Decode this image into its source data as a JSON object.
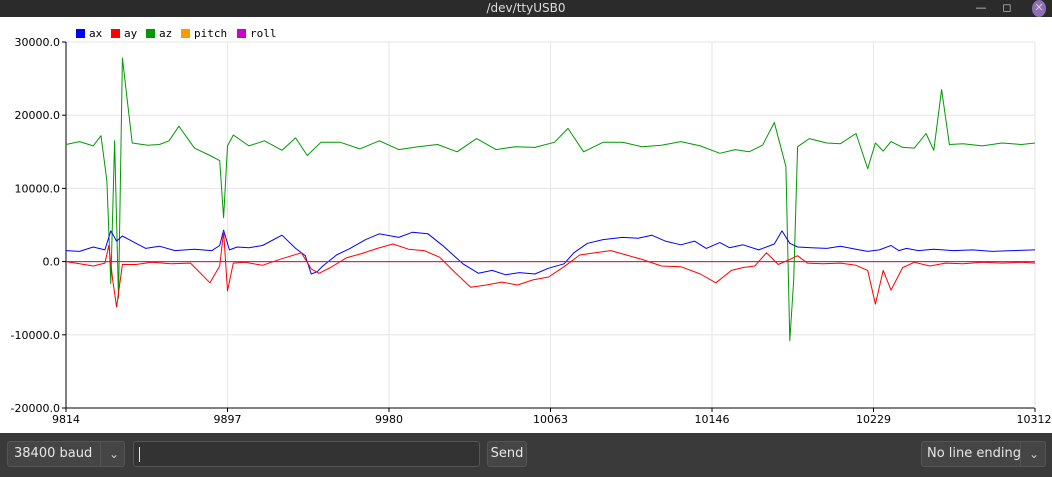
{
  "window": {
    "title": "/dev/ttyUSB0"
  },
  "legend": [
    {
      "label": "ax",
      "color": "#0000ff"
    },
    {
      "label": "ay",
      "color": "#ff0000"
    },
    {
      "label": "az",
      "color": "#009900"
    },
    {
      "label": "pitch",
      "color": "#ff9900"
    },
    {
      "label": "roll",
      "color": "#cc00cc"
    }
  ],
  "controls": {
    "baud_label": "38400 baud",
    "message_value": "",
    "send_label": "Send",
    "line_ending_label": "No line ending"
  },
  "chart_data": {
    "type": "line",
    "ylim": [
      -20000,
      30000
    ],
    "xlim": [
      9814,
      10312
    ],
    "y_ticks": [
      "30000.0",
      "20000.0",
      "10000.0",
      "0.0",
      "-10000.0",
      "-20000.0"
    ],
    "x_ticks": [
      "9814",
      "9897",
      "9980",
      "10063",
      "10146",
      "10229",
      "10312"
    ],
    "legend_position": "top-left",
    "grid": true,
    "series": [
      {
        "name": "ax",
        "color": "#0000ff",
        "x": [
          9814,
          9821,
          9828,
          9834,
          9837,
          9840,
          9843,
          9850,
          9855,
          9862,
          9870,
          9880,
          9889,
          9893,
          9895,
          9898,
          9902,
          9908,
          9915,
          9925,
          9932,
          9937,
          9940,
          9943,
          9946,
          9953,
          9960,
          9968,
          9975,
          9985,
          9992,
          10000,
          10008,
          10018,
          10026,
          10033,
          10040,
          10047,
          10055,
          10062,
          10070,
          10075,
          10082,
          10090,
          10100,
          10108,
          10115,
          10122,
          10130,
          10137,
          10143,
          10150,
          10155,
          10162,
          10170,
          10178,
          10182,
          10186,
          10190,
          10197,
          10205,
          10212,
          10220,
          10226,
          10232,
          10238,
          10242,
          10246,
          10252,
          10260,
          10270,
          10280,
          10290,
          10300,
          10312
        ],
        "values": [
          1500,
          1400,
          2000,
          1600,
          4200,
          2800,
          3500,
          2500,
          1800,
          2100,
          1500,
          1700,
          1500,
          2200,
          4300,
          1600,
          2000,
          1900,
          2200,
          3600,
          1800,
          800,
          -1700,
          -1400,
          -600,
          900,
          1800,
          3000,
          3800,
          3300,
          4000,
          3800,
          2100,
          -300,
          -1600,
          -1200,
          -1800,
          -1500,
          -1700,
          -900,
          -300,
          1200,
          2500,
          3000,
          3300,
          3200,
          3600,
          2800,
          2300,
          2800,
          1800,
          2600,
          1900,
          2300,
          1600,
          2400,
          4200,
          2500,
          2000,
          1900,
          1800,
          2100,
          1700,
          1400,
          1600,
          2200,
          1500,
          1800,
          1500,
          1700,
          1500,
          1600,
          1400,
          1500,
          1600
        ]
      },
      {
        "name": "ay",
        "color": "#ff0000",
        "x": [
          9814,
          9821,
          9828,
          9834,
          9836,
          9838,
          9840,
          9843,
          9850,
          9858,
          9868,
          9878,
          9888,
          9893,
          9895,
          9897,
          9900,
          9906,
          9915,
          9925,
          9935,
          9940,
          9944,
          9950,
          9958,
          9966,
          9974,
          9982,
          9990,
          9998,
          10006,
          10014,
          10022,
          10030,
          10038,
          10046,
          10054,
          10062,
          10070,
          10078,
          10086,
          10094,
          10102,
          10110,
          10120,
          10130,
          10140,
          10148,
          10156,
          10162,
          10168,
          10174,
          10180,
          10186,
          10190,
          10195,
          10203,
          10212,
          10220,
          10226,
          10230,
          10234,
          10238,
          10244,
          10250,
          10258,
          10266,
          10275,
          10285,
          10295,
          10305,
          10312
        ],
        "values": [
          0,
          -300,
          -600,
          -200,
          2200,
          -2500,
          -6200,
          -400,
          -400,
          -100,
          -300,
          -200,
          -2900,
          -600,
          4100,
          -4000,
          -200,
          -100,
          -500,
          400,
          1200,
          -1000,
          -1600,
          -800,
          500,
          1100,
          1800,
          2400,
          1700,
          1500,
          600,
          -1500,
          -3500,
          -3200,
          -2800,
          -3200,
          -2500,
          -2100,
          -700,
          900,
          1200,
          1500,
          900,
          300,
          -600,
          -700,
          -1700,
          -2900,
          -1200,
          -800,
          -600,
          1200,
          -400,
          300,
          800,
          -200,
          -300,
          -200,
          -500,
          -1200,
          -5800,
          -1200,
          -3900,
          -800,
          -100,
          -600,
          -200,
          -300,
          -100,
          -200,
          -100,
          -200
        ]
      },
      {
        "name": "az",
        "color": "#009900",
        "x": [
          9814,
          9821,
          9828,
          9832,
          9835,
          9837,
          9839,
          9841,
          9843,
          9848,
          9856,
          9862,
          9867,
          9872,
          9880,
          9888,
          9893,
          9895,
          9897,
          9900,
          9908,
          9916,
          9925,
          9932,
          9938,
          9945,
          9955,
          9965,
          9975,
          9985,
          9995,
          10005,
          10015,
          10025,
          10035,
          10045,
          10055,
          10065,
          10072,
          10080,
          10090,
          10100,
          10110,
          10120,
          10130,
          10140,
          10150,
          10158,
          10165,
          10172,
          10178,
          10182,
          10184,
          10186,
          10188,
          10190,
          10196,
          10205,
          10212,
          10220,
          10226,
          10230,
          10234,
          10238,
          10244,
          10250,
          10256,
          10260,
          10264,
          10268,
          10275,
          10285,
          10295,
          10305,
          10312
        ],
        "values": [
          16000,
          16400,
          15800,
          17200,
          11000,
          -3000,
          16500,
          -5000,
          27800,
          16200,
          15900,
          16000,
          16500,
          18500,
          15500,
          14500,
          13800,
          6000,
          15800,
          17300,
          15800,
          16500,
          15200,
          16900,
          14500,
          16300,
          16300,
          15400,
          16500,
          15300,
          15700,
          16000,
          15000,
          16800,
          15300,
          15700,
          15600,
          16300,
          18200,
          15000,
          16300,
          16300,
          15700,
          15900,
          16400,
          15800,
          14800,
          15300,
          15000,
          15900,
          19000,
          15000,
          13000,
          -10800,
          -2500,
          15700,
          16800,
          16200,
          16100,
          17500,
          12700,
          16200,
          15100,
          16400,
          15600,
          15500,
          17500,
          15200,
          23500,
          16000,
          16100,
          15800,
          16200,
          16000,
          16200
        ]
      },
      {
        "name": "pitch",
        "color": "#ff9900",
        "x": [
          9814,
          10312
        ],
        "values": [
          0,
          0
        ]
      },
      {
        "name": "roll",
        "color": "#cc00cc",
        "x": [
          9814,
          10312
        ],
        "values": [
          0,
          0
        ]
      }
    ]
  }
}
